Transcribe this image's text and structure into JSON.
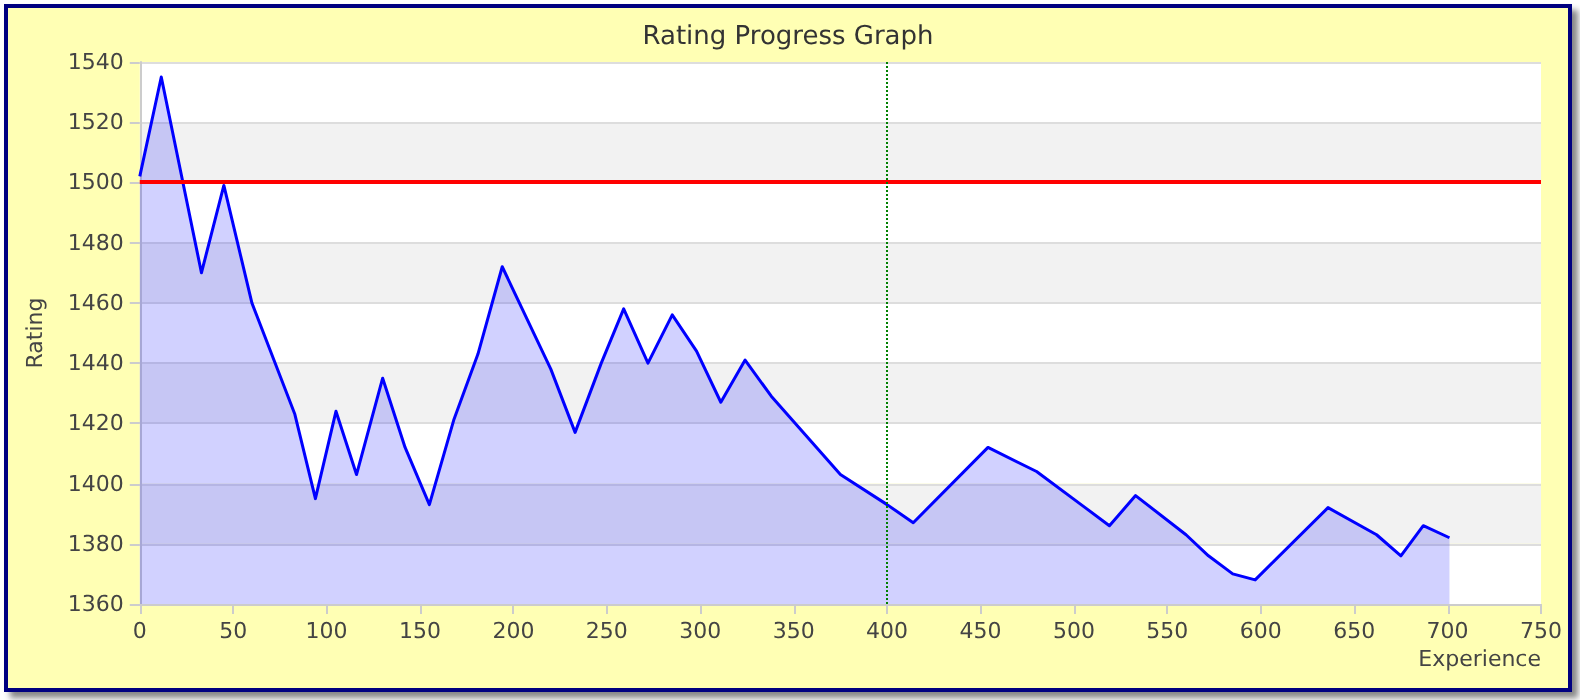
{
  "chart_data": {
    "type": "area",
    "title": "Rating Progress Graph",
    "xlabel": "Experience",
    "ylabel": "Rating",
    "x": [
      0,
      11.5,
      33,
      45,
      60,
      83,
      94,
      105,
      116,
      130,
      142,
      155,
      168,
      181,
      194,
      220,
      233,
      247,
      259,
      272,
      285,
      298,
      311,
      324,
      338,
      375,
      400,
      414,
      454,
      480,
      506,
      519,
      533,
      560,
      572,
      585,
      597,
      636,
      662,
      675,
      687,
      701
    ],
    "series": [
      {
        "color": "#0000ff",
        "values": [
          1502,
          1535,
          1470,
          1499,
          1460,
          1423,
          1395,
          1424,
          1403,
          1435,
          1412,
          1393,
          1421,
          1443,
          1472,
          1438,
          1417,
          1440,
          1458,
          1440,
          1456,
          1444,
          1427,
          1441,
          1429,
          1403,
          1393,
          1387,
          1412,
          1404,
          1392,
          1386,
          1396,
          1383,
          1376,
          1370,
          1368,
          1392,
          1383,
          1376,
          1386,
          1382
        ]
      }
    ],
    "xlim": [
      0,
      750
    ],
    "xticks": [
      0,
      50,
      100,
      150,
      200,
      250,
      300,
      350,
      400,
      450,
      500,
      550,
      600,
      650,
      700,
      750
    ],
    "ylim": [
      1360,
      1540
    ],
    "yticks": [
      1360,
      1380,
      1400,
      1420,
      1440,
      1460,
      1480,
      1500,
      1520,
      1540
    ],
    "grid": "y",
    "marker": "none",
    "line_style": "solid",
    "ref_lines": [
      {
        "axis": "y",
        "value": 1500,
        "color": "#ff0000",
        "line_style": "solid"
      },
      {
        "axis": "x",
        "value": 400,
        "color": "#008000",
        "line_style": "dotted"
      }
    ]
  }
}
